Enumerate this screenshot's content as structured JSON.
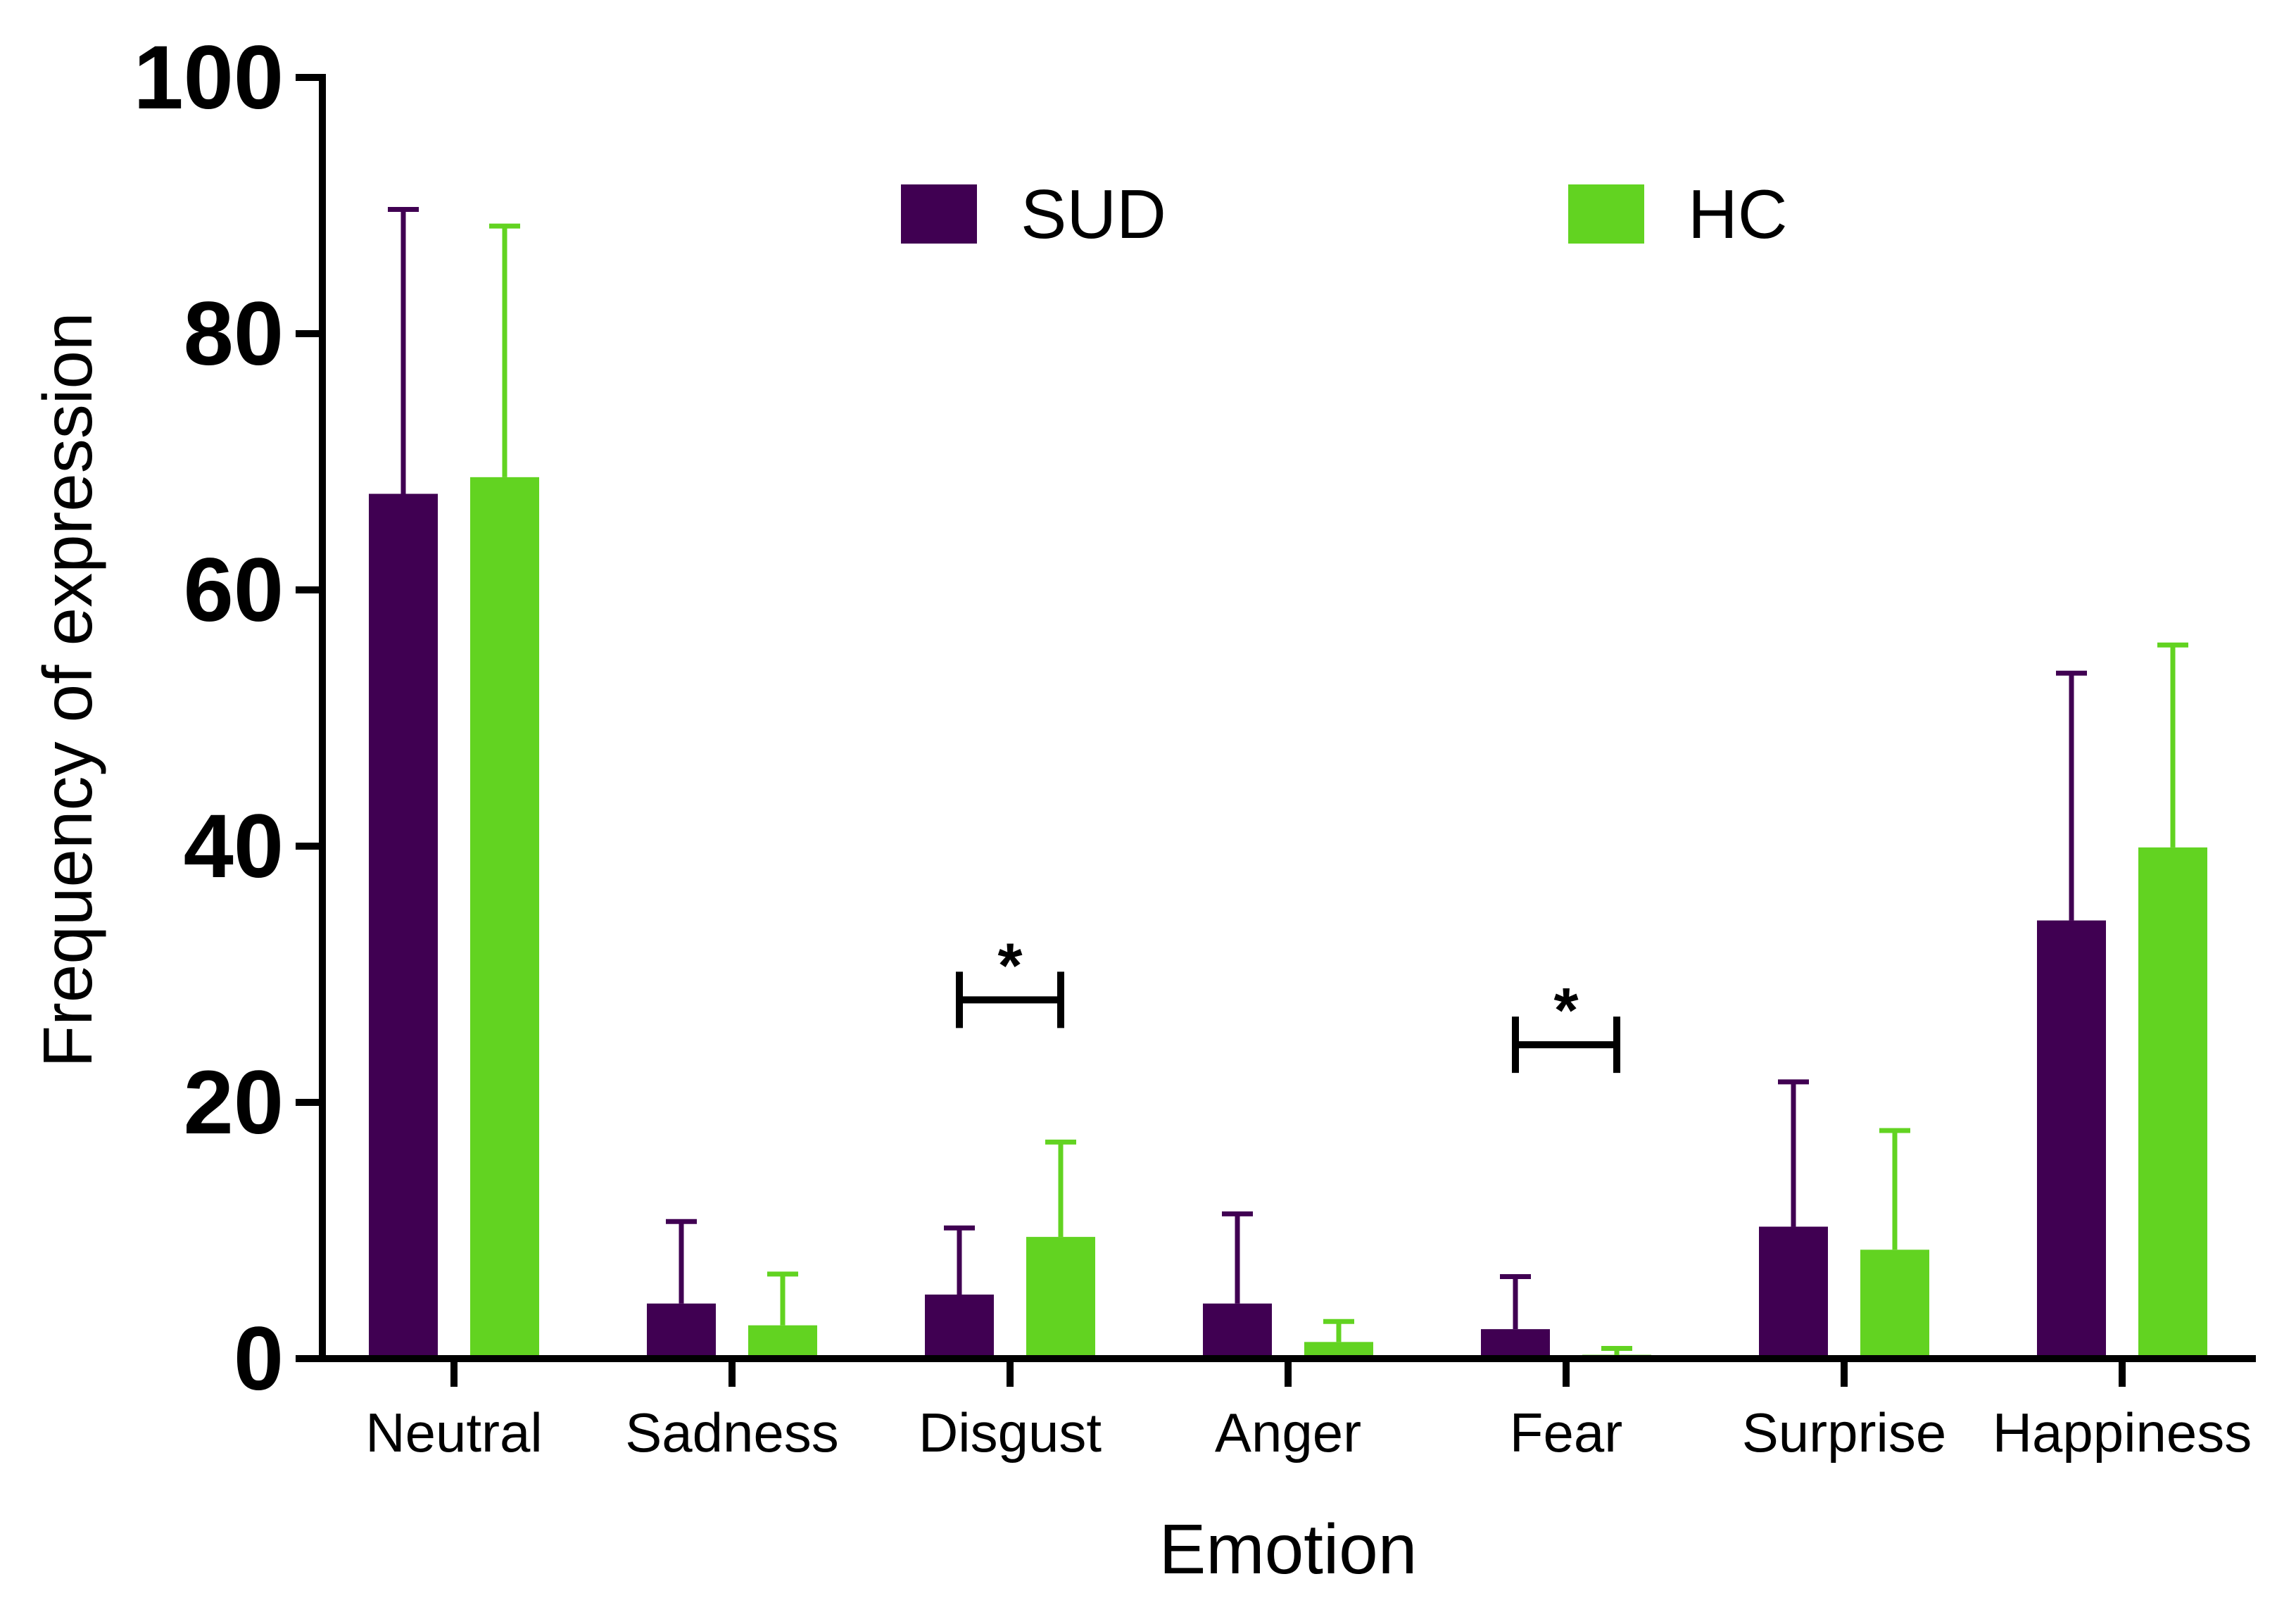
{
  "chart_data": {
    "type": "bar",
    "title": "",
    "xlabel": "Emotion",
    "ylabel": "Frequency of expression",
    "ylim": [
      0,
      100
    ],
    "yticks": [
      "0",
      "20",
      "40",
      "60",
      "80",
      "100"
    ],
    "categories": [
      "Neutral",
      "Sadness",
      "Disgust",
      "Anger",
      "Fear",
      "Surprise",
      "Happiness"
    ],
    "series": [
      {
        "name": "SUD",
        "color": "#400052",
        "values": [
          67.5,
          4.3,
          5.0,
          4.3,
          2.3,
          10.3,
          34.2
        ],
        "error_upper": [
          89.7,
          10.7,
          10.2,
          11.3,
          6.4,
          21.6,
          53.5
        ]
      },
      {
        "name": "HC",
        "color": "#62d321",
        "values": [
          68.8,
          2.6,
          9.5,
          1.3,
          0.3,
          8.5,
          39.9
        ],
        "error_upper": [
          88.4,
          6.6,
          16.9,
          2.9,
          0.8,
          17.8,
          55.7
        ]
      }
    ],
    "legend": {
      "position": "top-center",
      "entries": [
        "SUD",
        "HC"
      ]
    },
    "annotations": [
      {
        "category": "Disgust",
        "text": "*",
        "bracket_y": 28,
        "description": "significant difference"
      },
      {
        "category": "Fear",
        "text": "*",
        "bracket_y": 24.5,
        "description": "significant difference"
      }
    ]
  }
}
